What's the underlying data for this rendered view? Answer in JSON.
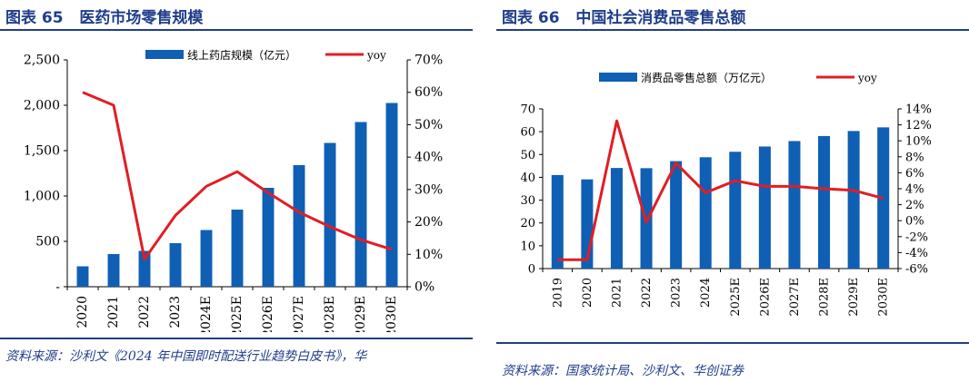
{
  "chart_data": [
    {
      "type": "bar",
      "figure_label": "图表 65",
      "title": "医药市场零售规模",
      "categories": [
        "2020",
        "2021",
        "2022",
        "2023",
        "2024E",
        "2025E",
        "2026E",
        "2027E",
        "2028E",
        "2029E",
        "2030E"
      ],
      "series": [
        {
          "name": "线上药店规模（亿元）",
          "type": "bar",
          "axis": "left",
          "color": "#0f5fb4",
          "values": [
            225,
            360,
            395,
            480,
            625,
            850,
            1090,
            1340,
            1585,
            1815,
            2025
          ]
        },
        {
          "name": "yoy",
          "type": "line",
          "axis": "right",
          "color": "#e01e25",
          "values": [
            60.0,
            56.0,
            8.5,
            22.0,
            31.0,
            35.5,
            29.0,
            23.0,
            18.5,
            14.5,
            11.5
          ]
        }
      ],
      "y_left": {
        "min": 0,
        "max": 2500,
        "step": 500,
        "ticks": [
          "-",
          "500",
          "1,000",
          "1,500",
          "2,000",
          "2,500"
        ]
      },
      "y_right": {
        "min": 0,
        "max": 70,
        "step": 10,
        "ticks": [
          "0%",
          "10%",
          "20%",
          "30%",
          "40%",
          "50%",
          "60%",
          "70%"
        ]
      },
      "legend": [
        "线上药店规模（亿元）",
        "yoy"
      ],
      "legend_position": "top",
      "source": "资料来源：沙利文《2024 年中国即时配送行业趋势白皮书》，华"
    },
    {
      "type": "bar",
      "figure_label": "图表 66",
      "title": "中国社会消费品零售总额",
      "categories": [
        "2019",
        "2020",
        "2021",
        "2022",
        "2023",
        "2024",
        "2025E",
        "2026E",
        "2027E",
        "2028E",
        "2029E",
        "2030E"
      ],
      "series": [
        {
          "name": "消费品零售总额（万亿元）",
          "type": "bar",
          "axis": "left",
          "color": "#0f5fb4",
          "values": [
            41.0,
            39.1,
            44.1,
            44.0,
            47.1,
            48.8,
            51.2,
            53.5,
            55.9,
            58.1,
            60.3,
            61.9
          ]
        },
        {
          "name": "yoy",
          "type": "line",
          "axis": "right",
          "color": "#e01e25",
          "values": [
            -4.9,
            -4.9,
            12.5,
            -0.2,
            7.2,
            3.5,
            5.0,
            4.3,
            4.3,
            4.0,
            3.8,
            2.8
          ]
        }
      ],
      "y_left": {
        "min": 0,
        "max": 70,
        "step": 10,
        "ticks": [
          "0",
          "10",
          "20",
          "30",
          "40",
          "50",
          "60",
          "70"
        ]
      },
      "y_right": {
        "min": -6,
        "max": 14,
        "step": 2,
        "ticks": [
          "-6%",
          "-4%",
          "-2%",
          "0%",
          "2%",
          "4%",
          "6%",
          "8%",
          "10%",
          "12%",
          "14%"
        ]
      },
      "legend": [
        "消费品零售总额（万亿元）",
        "yoy"
      ],
      "legend_position": "top",
      "source": "资料来源：国家统计局、沙利文、华创证券"
    }
  ]
}
